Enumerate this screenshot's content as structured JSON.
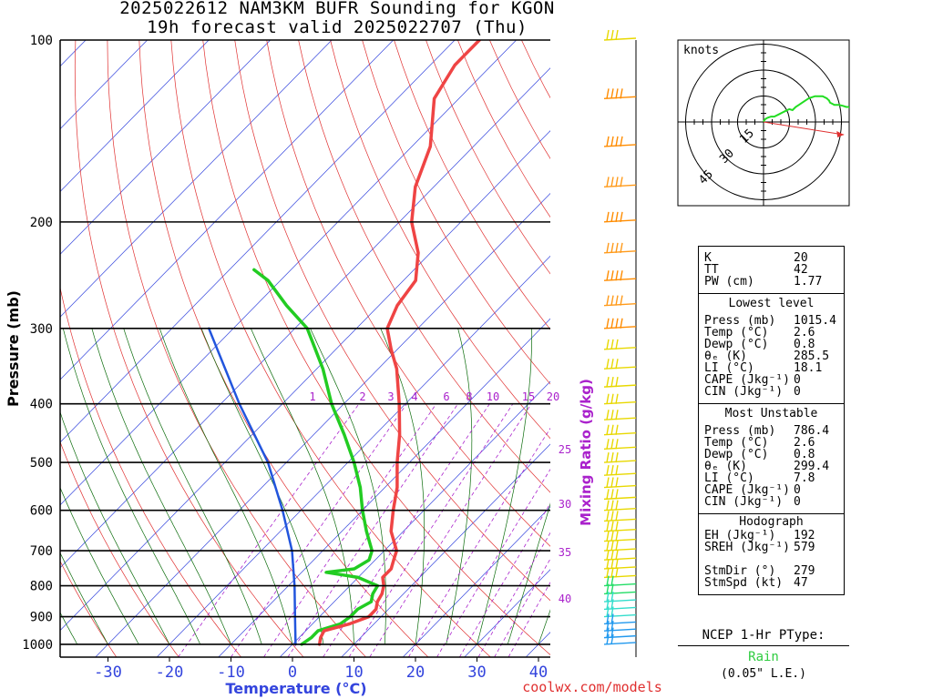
{
  "title_line1": "2025022612 NAM3KM BUFR Sounding for KGON",
  "title_line2": "19h forecast valid 2025022707 (Thu)",
  "chart_data": {
    "type": "skew-t log-p sounding",
    "xlabel": "Temperature (°C)",
    "ylabel": "Pressure (mb)",
    "x_ticks": [
      -30,
      -20,
      -10,
      0,
      10,
      20,
      30,
      40
    ],
    "y_ticks": [
      100,
      200,
      300,
      400,
      500,
      600,
      700,
      800,
      900,
      1000
    ],
    "mixing_ratio_label": "Mixing Ratio (g/kg)",
    "mixing_ratio_top": [
      1,
      2,
      3,
      4,
      6,
      8,
      10,
      15,
      20
    ],
    "mixing_ratio_side": [
      25,
      30,
      35,
      40
    ],
    "temperature_series": [
      {
        "p": 1000,
        "t": 4.4
      },
      {
        "p": 975,
        "t": 3.5
      },
      {
        "p": 950,
        "t": 3.0
      },
      {
        "p": 925,
        "t": 6.0
      },
      {
        "p": 900,
        "t": 8.0
      },
      {
        "p": 875,
        "t": 8.0
      },
      {
        "p": 850,
        "t": 7.0
      },
      {
        "p": 825,
        "t": 6.5
      },
      {
        "p": 800,
        "t": 5.5
      },
      {
        "p": 775,
        "t": 4.0
      },
      {
        "p": 750,
        "t": 4.0
      },
      {
        "p": 725,
        "t": 3.0
      },
      {
        "p": 700,
        "t": 2.0
      },
      {
        "p": 650,
        "t": -2.0
      },
      {
        "p": 600,
        "t": -5.0
      },
      {
        "p": 550,
        "t": -8.0
      },
      {
        "p": 500,
        "t": -12.0
      },
      {
        "p": 450,
        "t": -16.0
      },
      {
        "p": 400,
        "t": -21.0
      },
      {
        "p": 350,
        "t": -27.0
      },
      {
        "p": 325,
        "t": -31.0
      },
      {
        "p": 300,
        "t": -35.0
      },
      {
        "p": 275,
        "t": -37.0
      },
      {
        "p": 250,
        "t": -38.0
      },
      {
        "p": 225,
        "t": -42.0
      },
      {
        "p": 200,
        "t": -48.0
      },
      {
        "p": 175,
        "t": -53.0
      },
      {
        "p": 150,
        "t": -57.0
      },
      {
        "p": 125,
        "t": -64.0
      },
      {
        "p": 110,
        "t": -66.0
      },
      {
        "p": 100,
        "t": -66.0
      }
    ],
    "dewpoint_series": [
      {
        "p": 1000,
        "t": 1.5
      },
      {
        "p": 975,
        "t": 2.0
      },
      {
        "p": 950,
        "t": 2.0
      },
      {
        "p": 925,
        "t": 4.5
      },
      {
        "p": 900,
        "t": 5.0
      },
      {
        "p": 875,
        "t": 5.0
      },
      {
        "p": 850,
        "t": 6.0
      },
      {
        "p": 825,
        "t": 5.0
      },
      {
        "p": 800,
        "t": 4.5
      },
      {
        "p": 775,
        "t": 0.0
      },
      {
        "p": 760,
        "t": -6.0
      },
      {
        "p": 750,
        "t": -2.0
      },
      {
        "p": 725,
        "t": -1.0
      },
      {
        "p": 700,
        "t": -2.0
      },
      {
        "p": 650,
        "t": -6.0
      },
      {
        "p": 600,
        "t": -10.0
      },
      {
        "p": 550,
        "t": -14.0
      },
      {
        "p": 500,
        "t": -19.0
      },
      {
        "p": 450,
        "t": -25.0
      },
      {
        "p": 400,
        "t": -32.0
      },
      {
        "p": 350,
        "t": -39.0
      },
      {
        "p": 300,
        "t": -48.0
      },
      {
        "p": 275,
        "t": -55.0
      },
      {
        "p": 250,
        "t": -62.0
      },
      {
        "p": 240,
        "t": -66.0
      }
    ],
    "parcel_series": [
      {
        "p": 1000,
        "t": 0.5
      },
      {
        "p": 900,
        "t": -4.0
      },
      {
        "p": 800,
        "t": -9.0
      },
      {
        "p": 700,
        "t": -15.0
      },
      {
        "p": 600,
        "t": -23.0
      },
      {
        "p": 500,
        "t": -33.0
      },
      {
        "p": 400,
        "t": -47.0
      },
      {
        "p": 300,
        "t": -64.0
      }
    ]
  },
  "hodograph": {
    "label": "knots",
    "ring_labels": [
      "15",
      "30",
      "45"
    ],
    "trace": [
      [
        0,
        0
      ],
      [
        1,
        -2
      ],
      [
        2,
        -3
      ],
      [
        4,
        -4
      ],
      [
        7,
        -5
      ],
      [
        10,
        -5
      ],
      [
        14,
        -7
      ],
      [
        18,
        -9
      ],
      [
        20,
        -10
      ],
      [
        24,
        -12
      ],
      [
        27,
        -11
      ],
      [
        30,
        -14
      ],
      [
        33,
        -16
      ],
      [
        36,
        -18
      ],
      [
        42,
        -22
      ],
      [
        48,
        -24
      ],
      [
        55,
        -24
      ],
      [
        57,
        -23
      ],
      [
        59,
        -22
      ],
      [
        60,
        -21
      ],
      [
        61,
        -20
      ],
      [
        62,
        -18
      ],
      [
        64,
        -17
      ],
      [
        66,
        -16
      ],
      [
        70,
        -16
      ],
      [
        74,
        -15
      ],
      [
        77,
        -14
      ],
      [
        79,
        -14
      ],
      [
        81,
        -13
      ],
      [
        84,
        -11
      ],
      [
        87,
        -10
      ],
      [
        92,
        -9
      ],
      [
        95,
        -8
      ]
    ],
    "storm_motion": {
      "dir_deg": 279,
      "speed_kt": 47
    }
  },
  "stats": {
    "top": [
      {
        "label": "K",
        "value": "20"
      },
      {
        "label": "TT",
        "value": "42"
      },
      {
        "label": "PW (cm)",
        "value": "1.77"
      }
    ],
    "lowest_level": {
      "header": "Lowest level",
      "rows": [
        {
          "label": "Press (mb)",
          "value": "1015.4"
        },
        {
          "label": "Temp (°C)",
          "value": "2.6"
        },
        {
          "label": "Dewp (°C)",
          "value": "0.8"
        },
        {
          "label": "θₑ (K)",
          "value": "285.5"
        },
        {
          "label": "LI (°C)",
          "value": "18.1"
        },
        {
          "label": "CAPE (Jkg⁻¹)",
          "value": "0"
        },
        {
          "label": "CIN (Jkg⁻¹)",
          "value": "0"
        }
      ]
    },
    "most_unstable": {
      "header": "Most Unstable",
      "rows": [
        {
          "label": "Press (mb)",
          "value": "786.4"
        },
        {
          "label": "Temp (°C)",
          "value": "2.6"
        },
        {
          "label": "Dewp (°C)",
          "value": "0.8"
        },
        {
          "label": "θₑ (K)",
          "value": "299.4"
        },
        {
          "label": "LI (°C)",
          "value": "7.8"
        },
        {
          "label": "CAPE (Jkg⁻¹)",
          "value": "0"
        },
        {
          "label": "CIN (Jkg⁻¹)",
          "value": "0"
        }
      ]
    },
    "hodograph": {
      "header": "Hodograph",
      "rows": [
        {
          "label": "EH (Jkg⁻¹)",
          "value": "192"
        },
        {
          "label": "SREH (Jkg⁻¹)",
          "value": "579"
        },
        {
          "label": "",
          "value": ""
        },
        {
          "label": "StmDir (°)",
          "value": "279"
        },
        {
          "label": "StmSpd (kt)",
          "value": "47"
        }
      ]
    }
  },
  "ptype": {
    "title": "NCEP 1-Hr PType:",
    "value": "Rain",
    "note": "(0.05\" L.E.)"
  },
  "footer": "coolwx.com/models",
  "colors": {
    "temperature": "#ef4444",
    "dewpoint": "#22cc22",
    "parcel": "#2255dd",
    "isotherm": "#3344dd",
    "dry_adiabat": "#e03030",
    "moist_adiabat": "#0a6b0a",
    "mixing_ratio": "#aa22cc",
    "footer": "#e03030"
  }
}
